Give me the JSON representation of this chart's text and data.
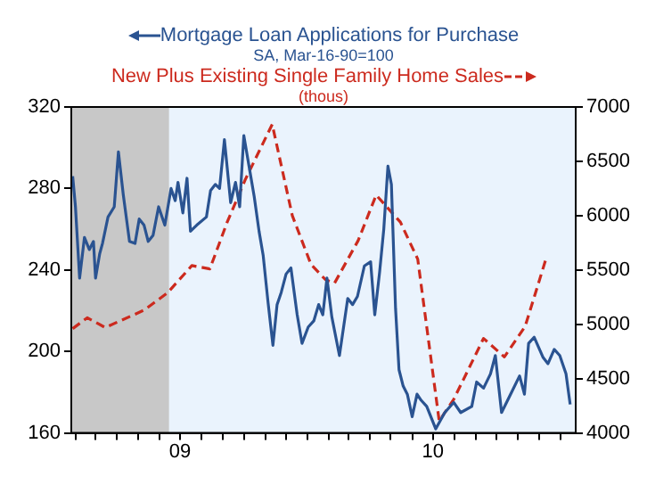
{
  "chart_data": {
    "type": "line",
    "annotations": [
      "SA, Mar-16-90=100",
      "(thous)"
    ],
    "xlim": [
      "2009-01-25",
      "2011-01-23"
    ],
    "xticks": [
      {
        "value": "2009-02-01",
        "label": null
      },
      {
        "value": "2009-03-01",
        "label": null
      },
      {
        "value": "2009-04-01",
        "label": null
      },
      {
        "value": "2009-05-01",
        "label": null
      },
      {
        "value": "2009-06-01",
        "label": null
      },
      {
        "value": "2009-07-01",
        "label": "09"
      },
      {
        "value": "2009-08-01",
        "label": null
      },
      {
        "value": "2009-09-01",
        "label": null
      },
      {
        "value": "2009-10-01",
        "label": null
      },
      {
        "value": "2009-11-01",
        "label": null
      },
      {
        "value": "2009-12-01",
        "label": null
      },
      {
        "value": "2010-01-01",
        "label": null
      },
      {
        "value": "2010-02-01",
        "label": null
      },
      {
        "value": "2010-03-01",
        "label": null
      },
      {
        "value": "2010-04-01",
        "label": null
      },
      {
        "value": "2010-05-01",
        "label": null
      },
      {
        "value": "2010-06-01",
        "label": null
      },
      {
        "value": "2010-07-01",
        "label": "10"
      },
      {
        "value": "2010-08-01",
        "label": null
      },
      {
        "value": "2010-09-01",
        "label": null
      },
      {
        "value": "2010-10-01",
        "label": null
      },
      {
        "value": "2010-11-01",
        "label": null
      },
      {
        "value": "2010-12-01",
        "label": null
      },
      {
        "value": "2011-01-01",
        "label": null
      }
    ],
    "ylim": [
      160,
      320
    ],
    "yticks": [
      160,
      200,
      240,
      280,
      320
    ],
    "y2lim": [
      4000,
      7000
    ],
    "y2ticks": [
      4000,
      4500,
      5000,
      5500,
      6000,
      6500,
      7000
    ],
    "grid": false,
    "marker": "none",
    "bands": [
      {
        "axis": "x",
        "from": "2009-01-25",
        "to": "2009-06-15",
        "color": "#c8c8c8"
      }
    ],
    "series": [
      {
        "name": "Mortgage Loan Applications for Purchase",
        "color": "#2a5391",
        "line_style": "solid",
        "x": [
          "2009-01-27",
          "2009-01-31",
          "2009-02-06",
          "2009-02-13",
          "2009-02-20",
          "2009-02-26",
          "2009-03-01",
          "2009-03-07",
          "2009-03-11",
          "2009-03-19",
          "2009-03-28",
          "2009-04-03",
          "2009-04-10",
          "2009-04-19",
          "2009-04-27",
          "2009-05-03",
          "2009-05-10",
          "2009-05-16",
          "2009-05-23",
          "2009-05-31",
          "2009-06-09",
          "2009-06-18",
          "2009-06-24",
          "2009-06-28",
          "2009-07-05",
          "2009-07-11",
          "2009-07-16",
          "2009-07-25",
          "2009-08-08",
          "2009-08-14",
          "2009-08-21",
          "2009-08-27",
          "2009-09-03",
          "2009-09-12",
          "2009-09-19",
          "2009-09-25",
          "2009-10-01",
          "2009-10-10",
          "2009-10-16",
          "2009-10-23",
          "2009-10-29",
          "2009-11-05",
          "2009-11-12",
          "2009-11-18",
          "2009-11-24",
          "2009-12-01",
          "2009-12-08",
          "2009-12-17",
          "2009-12-24",
          "2010-01-02",
          "2010-01-10",
          "2010-01-17",
          "2010-01-23",
          "2010-01-29",
          "2010-02-05",
          "2010-02-16",
          "2010-02-28",
          "2010-03-07",
          "2010-03-14",
          "2010-03-24",
          "2010-04-02",
          "2010-04-08",
          "2010-04-15",
          "2010-04-21",
          "2010-04-27",
          "2010-05-02",
          "2010-05-08",
          "2010-05-13",
          "2010-05-19",
          "2010-05-25",
          "2010-06-01",
          "2010-06-08",
          "2010-06-14",
          "2010-06-22",
          "2010-07-05",
          "2010-07-18",
          "2010-07-31",
          "2010-08-10",
          "2010-08-26",
          "2010-09-02",
          "2010-09-12",
          "2010-09-22",
          "2010-09-29",
          "2010-10-08",
          "2010-10-21",
          "2010-11-03",
          "2010-11-10",
          "2010-11-16",
          "2010-11-24",
          "2010-12-07",
          "2010-12-14",
          "2010-12-23",
          "2010-12-31",
          "2011-01-09",
          "2011-01-15"
        ],
        "values": [
          286,
          271,
          236,
          256,
          250,
          254,
          236,
          248,
          253,
          266,
          271,
          298,
          277,
          254,
          253,
          265,
          262,
          254,
          257,
          271,
          262,
          280,
          274,
          283,
          268,
          285,
          259,
          262,
          266,
          279,
          282,
          280,
          304,
          273,
          283,
          271,
          306,
          288,
          276,
          259,
          247,
          224,
          203,
          223,
          229,
          238,
          241,
          218,
          204,
          212,
          215,
          223,
          218,
          236,
          217,
          198,
          226,
          223,
          227,
          242,
          244,
          218,
          239,
          260,
          291,
          282,
          221,
          191,
          183,
          179,
          168,
          179,
          176,
          173,
          162,
          170,
          175,
          170,
          173,
          185,
          182,
          189,
          198,
          170,
          179,
          188,
          179,
          204,
          207,
          197,
          194,
          201,
          198,
          189,
          174
        ]
      },
      {
        "name": "New Plus Existing Single Family Home Sales",
        "color": "#cc2a1e",
        "line_style": "dashed",
        "axis": "y2",
        "x": [
          "2009-01-27",
          "2009-02-17",
          "2009-03-15",
          "2009-05-10",
          "2009-06-13",
          "2009-07-18",
          "2009-08-13",
          "2009-09-07",
          "2009-10-03",
          "2009-11-11",
          "2009-12-10",
          "2010-01-06",
          "2010-01-27",
          "2010-02-09",
          "2010-03-15",
          "2010-04-10",
          "2010-05-15",
          "2010-06-09",
          "2010-07-10",
          "2010-07-31",
          "2010-09-12",
          "2010-10-12",
          "2010-11-11",
          "2010-12-11"
        ],
        "values": [
          4960,
          5060,
          4970,
          5130,
          5290,
          5540,
          5510,
          5940,
          6330,
          6840,
          6000,
          5550,
          5410,
          5380,
          5770,
          6190,
          5940,
          5600,
          4110,
          4310,
          4870,
          4700,
          4980,
          5600
        ]
      }
    ]
  }
}
